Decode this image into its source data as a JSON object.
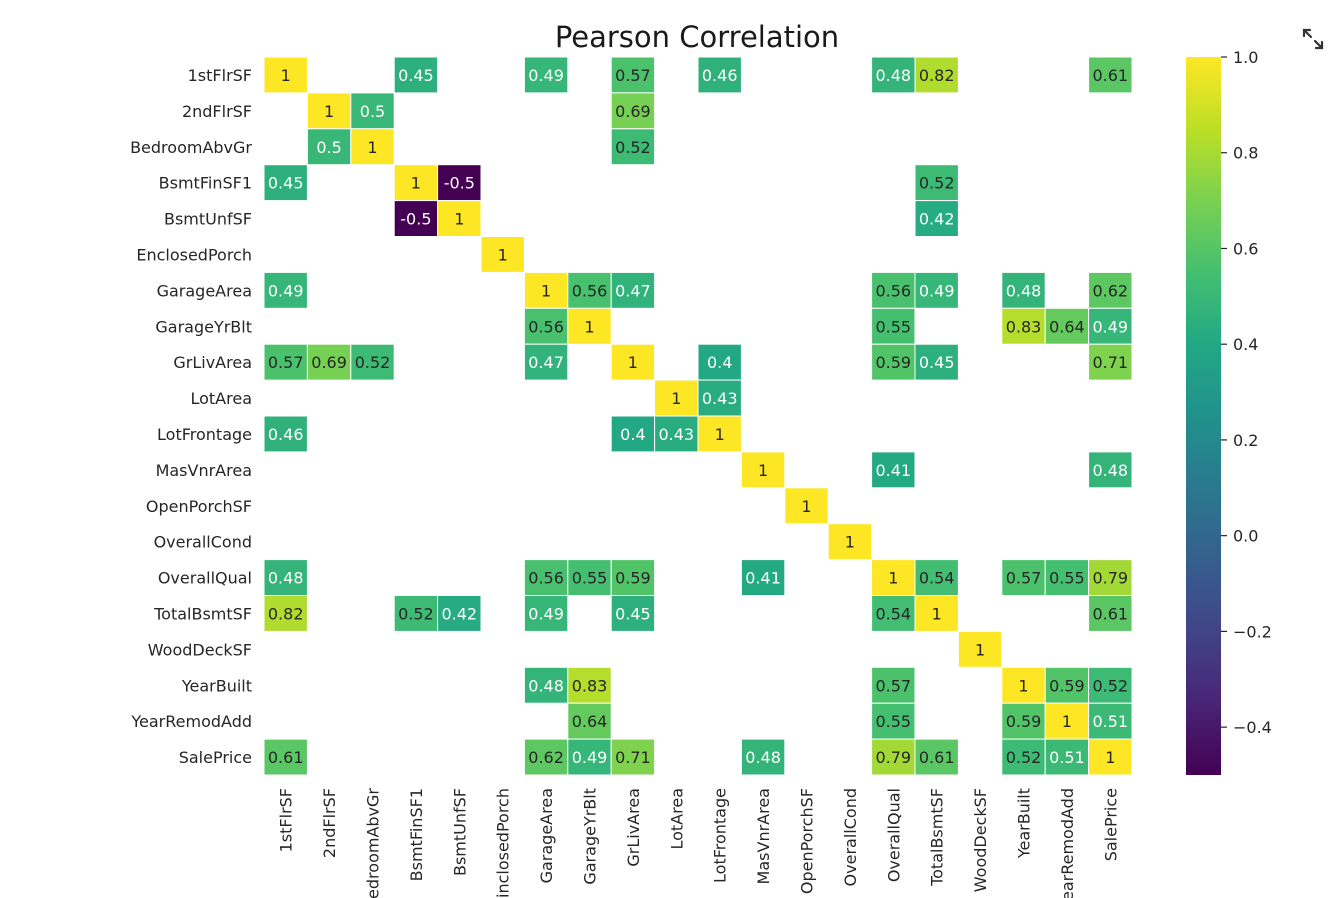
{
  "expand_icon": "expand-icon",
  "chart_data": {
    "type": "heatmap",
    "title": "Pearson Correlation",
    "colormap": "viridis",
    "mask_rule": "cells with |r| < 0.4 are blank",
    "vmin": -0.5,
    "vmax": 1.0,
    "colorbar_ticks": [
      "1.0",
      "0.8",
      "0.6",
      "0.4",
      "0.2",
      "0.0",
      "−0.2",
      "−0.4"
    ],
    "colorbar_tick_values": [
      1.0,
      0.8,
      0.6,
      0.4,
      0.2,
      0.0,
      -0.2,
      -0.4
    ],
    "x_tick_labels": [
      "1stFlrSF",
      "2ndFlrSF",
      "edroomAbvGr",
      "BsmtFinSF1",
      "BsmtUnfSF",
      "inclosedPorch",
      "GarageArea",
      "GarageYrBlt",
      "GrLivArea",
      "LotArea",
      "LotFrontage",
      "MasVnrArea",
      "OpenPorchSF",
      "OverallCond",
      "OverallQual",
      "TotalBsmtSF",
      "WoodDeckSF",
      "YearBuilt",
      "earRemodAdd",
      "SalePrice"
    ],
    "variables": [
      "1stFlrSF",
      "2ndFlrSF",
      "BedroomAbvGr",
      "BsmtFinSF1",
      "BsmtUnfSF",
      "EnclosedPorch",
      "GarageArea",
      "GarageYrBlt",
      "GrLivArea",
      "LotArea",
      "LotFrontage",
      "MasVnrArea",
      "OpenPorchSF",
      "OverallCond",
      "OverallQual",
      "TotalBsmtSF",
      "WoodDeckSF",
      "YearBuilt",
      "YearRemodAdd",
      "SalePrice"
    ],
    "matrix": [
      [
        1,
        null,
        null,
        0.45,
        null,
        null,
        0.49,
        null,
        0.57,
        null,
        0.46,
        null,
        null,
        null,
        0.48,
        0.82,
        null,
        null,
        null,
        0.61
      ],
      [
        null,
        1,
        0.5,
        null,
        null,
        null,
        null,
        null,
        0.69,
        null,
        null,
        null,
        null,
        null,
        null,
        null,
        null,
        null,
        null,
        null
      ],
      [
        null,
        0.5,
        1,
        null,
        null,
        null,
        null,
        null,
        0.52,
        null,
        null,
        null,
        null,
        null,
        null,
        null,
        null,
        null,
        null,
        null
      ],
      [
        0.45,
        null,
        null,
        1,
        -0.5,
        null,
        null,
        null,
        null,
        null,
        null,
        null,
        null,
        null,
        null,
        0.52,
        null,
        null,
        null,
        null
      ],
      [
        null,
        null,
        null,
        -0.5,
        1,
        null,
        null,
        null,
        null,
        null,
        null,
        null,
        null,
        null,
        null,
        0.42,
        null,
        null,
        null,
        null
      ],
      [
        null,
        null,
        null,
        null,
        null,
        1,
        null,
        null,
        null,
        null,
        null,
        null,
        null,
        null,
        null,
        null,
        null,
        null,
        null,
        null
      ],
      [
        0.49,
        null,
        null,
        null,
        null,
        null,
        1,
        0.56,
        0.47,
        null,
        null,
        null,
        null,
        null,
        0.56,
        0.49,
        null,
        0.48,
        null,
        0.62
      ],
      [
        null,
        null,
        null,
        null,
        null,
        null,
        0.56,
        1,
        null,
        null,
        null,
        null,
        null,
        null,
        0.55,
        null,
        null,
        0.83,
        0.64,
        0.49
      ],
      [
        0.57,
        0.69,
        0.52,
        null,
        null,
        null,
        0.47,
        null,
        1,
        null,
        0.4,
        null,
        null,
        null,
        0.59,
        0.45,
        null,
        null,
        null,
        0.71
      ],
      [
        null,
        null,
        null,
        null,
        null,
        null,
        null,
        null,
        null,
        1,
        0.43,
        null,
        null,
        null,
        null,
        null,
        null,
        null,
        null,
        null
      ],
      [
        0.46,
        null,
        null,
        null,
        null,
        null,
        null,
        null,
        0.4,
        0.43,
        1,
        null,
        null,
        null,
        null,
        null,
        null,
        null,
        null,
        null
      ],
      [
        null,
        null,
        null,
        null,
        null,
        null,
        null,
        null,
        null,
        null,
        null,
        1,
        null,
        null,
        0.41,
        null,
        null,
        null,
        null,
        0.48
      ],
      [
        null,
        null,
        null,
        null,
        null,
        null,
        null,
        null,
        null,
        null,
        null,
        null,
        1,
        null,
        null,
        null,
        null,
        null,
        null,
        null
      ],
      [
        null,
        null,
        null,
        null,
        null,
        null,
        null,
        null,
        null,
        null,
        null,
        null,
        null,
        1,
        null,
        null,
        null,
        null,
        null,
        null
      ],
      [
        0.48,
        null,
        null,
        null,
        null,
        null,
        0.56,
        0.55,
        0.59,
        null,
        null,
        0.41,
        null,
        null,
        1,
        0.54,
        null,
        0.57,
        0.55,
        0.79
      ],
      [
        0.82,
        null,
        null,
        0.52,
        0.42,
        null,
        0.49,
        null,
        0.45,
        null,
        null,
        null,
        null,
        null,
        0.54,
        1,
        null,
        null,
        null,
        0.61
      ],
      [
        null,
        null,
        null,
        null,
        null,
        null,
        null,
        null,
        null,
        null,
        null,
        null,
        null,
        null,
        null,
        null,
        1,
        null,
        null,
        null
      ],
      [
        null,
        null,
        null,
        null,
        null,
        null,
        0.48,
        0.83,
        null,
        null,
        null,
        null,
        null,
        null,
        0.57,
        null,
        null,
        1,
        0.59,
        0.52
      ],
      [
        null,
        null,
        null,
        null,
        null,
        null,
        null,
        0.64,
        null,
        null,
        null,
        null,
        null,
        null,
        0.55,
        null,
        null,
        0.59,
        1,
        0.51
      ],
      [
        0.61,
        null,
        null,
        null,
        null,
        null,
        0.62,
        0.49,
        0.71,
        null,
        null,
        0.48,
        null,
        null,
        0.79,
        0.61,
        null,
        0.52,
        0.51,
        1
      ]
    ]
  }
}
